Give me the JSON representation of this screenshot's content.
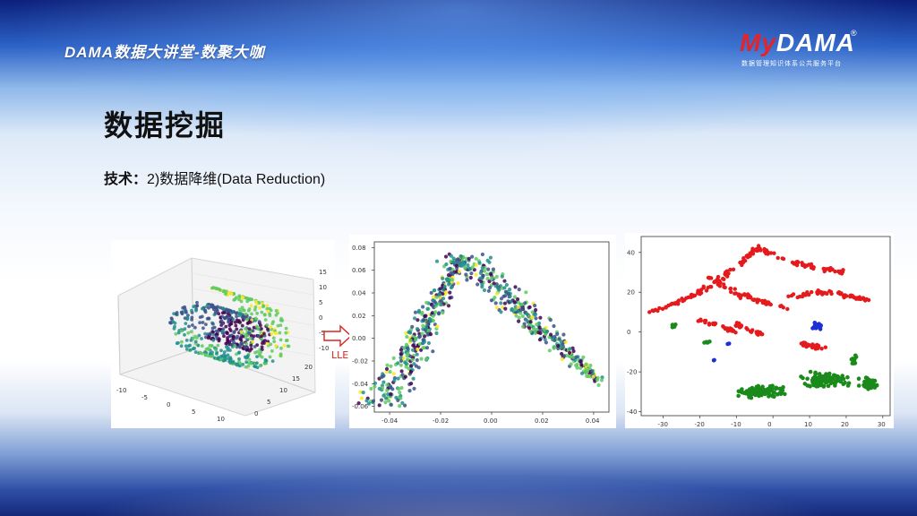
{
  "header": {
    "brand_text": "DAMA数据大讲堂-数聚大咖",
    "logo": {
      "my": "My",
      "dama": "DAMA",
      "registered": "®",
      "tagline": "数据管理知识体系公共服务平台"
    }
  },
  "slide": {
    "title": "数据挖掘",
    "subtitle_key": "技术：",
    "subtitle_value": "2)数据降维(Data Reduction)"
  },
  "arrow_label": "LLE",
  "colors": {
    "viridis": [
      "#440154",
      "#3b528b",
      "#21918c",
      "#5ec962",
      "#fde725"
    ],
    "red": "#e41a1c",
    "green": "#1a8a1a",
    "blue": "#1f2fd6"
  },
  "chart_data": [
    {
      "type": "scatter",
      "projection": "3d",
      "x_ticks": [
        "-10",
        "-5",
        "0",
        "5",
        "10"
      ],
      "y_ticks": [
        "0",
        "5",
        "10",
        "15",
        "20"
      ],
      "z_ticks": [
        "15",
        "10",
        "5",
        "0",
        "-5",
        "-10"
      ],
      "colormap": "viridis"
    },
    {
      "type": "scatter",
      "x_ticks": [
        "-0.04",
        "-0.02",
        "0.00",
        "0.02",
        "0.04"
      ],
      "y_ticks": [
        "0.08",
        "0.06",
        "0.04",
        "0.02",
        "0.00",
        "-0.02",
        "-0.04",
        "-0.06"
      ],
      "xlim": [
        -0.046,
        0.046
      ],
      "ylim": [
        -0.065,
        0.085
      ],
      "colormap": "viridis"
    },
    {
      "type": "scatter",
      "x_ticks": [
        "-30",
        "-20",
        "-10",
        "0",
        "10",
        "20",
        "30"
      ],
      "y_ticks": [
        "40",
        "20",
        "0",
        "-20",
        "-40"
      ],
      "xlim": [
        -36,
        32
      ],
      "ylim": [
        -42,
        48
      ],
      "series_colors": [
        "red",
        "green",
        "blue"
      ]
    }
  ]
}
